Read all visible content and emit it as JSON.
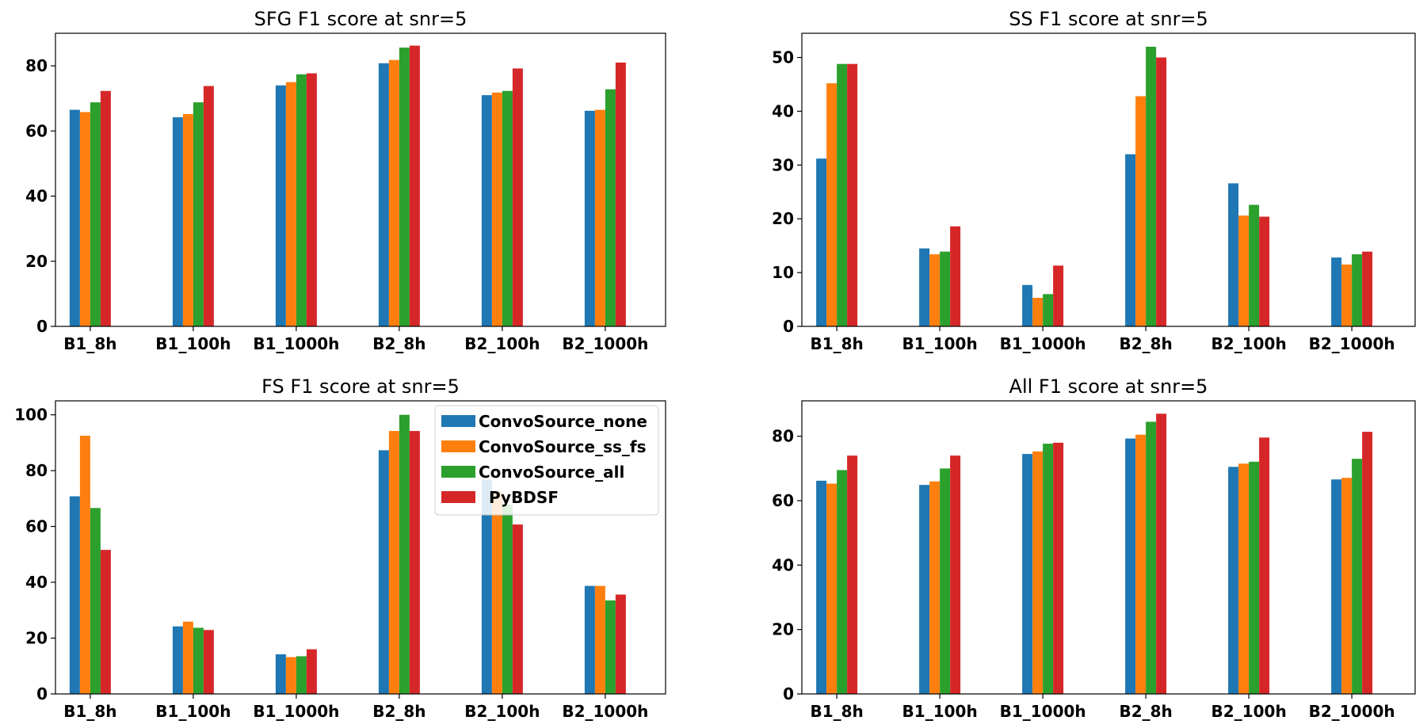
{
  "chart_data": [
    {
      "type": "bar",
      "title": "SFG F1 score at snr=5",
      "categories": [
        "B1_8h",
        "B1_100h",
        "B1_1000h",
        "B2_8h",
        "B2_100h",
        "B2_1000h"
      ],
      "ylim": [
        0,
        90
      ],
      "yticks": [
        0,
        20,
        40,
        60,
        80
      ],
      "ytick_labels": [
        "0",
        "20",
        "40",
        "60",
        "80"
      ],
      "series": [
        {
          "name": "ConvoSource_none",
          "values": [
            66.5,
            64.2,
            74.0,
            80.8,
            71.0,
            66.2
          ]
        },
        {
          "name": "ConvoSource_ss_fs",
          "values": [
            65.8,
            65.2,
            75.0,
            81.8,
            71.8,
            66.5
          ]
        },
        {
          "name": "ConvoSource_all",
          "values": [
            68.8,
            68.8,
            77.4,
            85.6,
            72.3,
            72.8
          ]
        },
        {
          "name": "PyBDSF",
          "values": [
            72.3,
            73.8,
            77.7,
            86.2,
            79.2,
            81.0
          ]
        }
      ]
    },
    {
      "type": "bar",
      "title": "SS F1 score at snr=5",
      "categories": [
        "B1_8h",
        "B1_100h",
        "B1_1000h",
        "B2_8h",
        "B2_100h",
        "B2_1000h"
      ],
      "ylim": [
        0,
        54.5
      ],
      "yticks": [
        0,
        10,
        20,
        30,
        40,
        50
      ],
      "ytick_labels": [
        "0",
        "10",
        "20",
        "30",
        "40",
        "50"
      ],
      "series": [
        {
          "name": "ConvoSource_none",
          "values": [
            31.2,
            14.5,
            7.7,
            32.0,
            26.6,
            12.8
          ]
        },
        {
          "name": "ConvoSource_ss_fs",
          "values": [
            45.2,
            13.4,
            5.3,
            42.8,
            20.6,
            11.5
          ]
        },
        {
          "name": "ConvoSource_all",
          "values": [
            48.8,
            13.9,
            6.0,
            52.0,
            22.6,
            13.4
          ]
        },
        {
          "name": "PyBDSF",
          "values": [
            48.8,
            18.6,
            11.3,
            50.0,
            20.4,
            13.9
          ]
        }
      ]
    },
    {
      "type": "bar",
      "title": "FS F1 score at snr=5",
      "categories": [
        "B1_8h",
        "B1_100h",
        "B1_1000h",
        "B2_8h",
        "B2_100h",
        "B2_1000h"
      ],
      "ylim": [
        0,
        105
      ],
      "yticks": [
        0,
        20,
        40,
        60,
        80,
        100
      ],
      "ytick_labels": [
        "0",
        "20",
        "40",
        "60",
        "80",
        "100"
      ],
      "legend_position": "top-right",
      "series": [
        {
          "name": "ConvoSource_none",
          "values": [
            70.8,
            24.2,
            14.2,
            87.3,
            76.8,
            38.7
          ]
        },
        {
          "name": "ConvoSource_ss_fs",
          "values": [
            92.5,
            25.9,
            13.2,
            94.2,
            72.5,
            38.7
          ]
        },
        {
          "name": "ConvoSource_all",
          "values": [
            66.6,
            23.7,
            13.5,
            100.0,
            67.8,
            33.5
          ]
        },
        {
          "name": "PyBDSF",
          "values": [
            51.6,
            22.9,
            16.0,
            94.2,
            60.7,
            35.6
          ]
        }
      ]
    },
    {
      "type": "bar",
      "title": "All F1 score at snr=5",
      "categories": [
        "B1_8h",
        "B1_100h",
        "B1_1000h",
        "B2_8h",
        "B2_100h",
        "B2_1000h"
      ],
      "ylim": [
        0,
        91
      ],
      "yticks": [
        0,
        20,
        40,
        60,
        80
      ],
      "ytick_labels": [
        "0",
        "20",
        "40",
        "60",
        "80"
      ],
      "series": [
        {
          "name": "ConvoSource_none",
          "values": [
            66.2,
            64.9,
            74.5,
            79.3,
            70.5,
            66.6
          ]
        },
        {
          "name": "ConvoSource_ss_fs",
          "values": [
            65.3,
            66.0,
            75.3,
            80.5,
            71.5,
            67.1
          ]
        },
        {
          "name": "ConvoSource_all",
          "values": [
            69.5,
            70.0,
            77.7,
            84.5,
            72.1,
            73.0
          ]
        },
        {
          "name": "PyBDSF",
          "values": [
            74.0,
            74.0,
            78.0,
            87.0,
            79.6,
            81.4
          ]
        }
      ]
    }
  ],
  "legend": {
    "entries": [
      "ConvoSource_none",
      "ConvoSource_ss_fs",
      "ConvoSource_all",
      "PyBDSF"
    ]
  },
  "colors": {
    "ConvoSource_none": "#1f77b4",
    "ConvoSource_ss_fs": "#ff7f0e",
    "ConvoSource_all": "#2ca02c",
    "PyBDSF": "#d62728"
  }
}
